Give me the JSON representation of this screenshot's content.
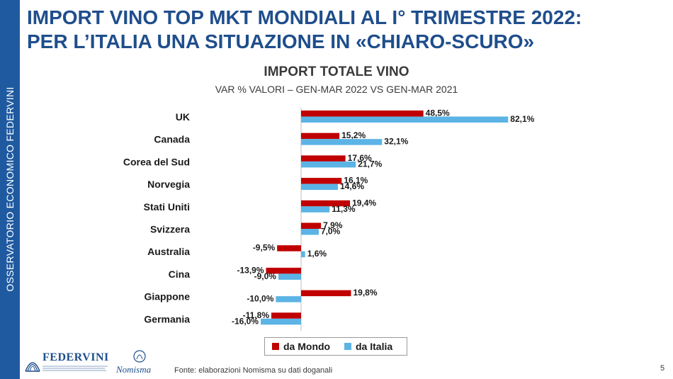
{
  "sidebar": {
    "text": "OSSERVATORIO ECONOMICO  FEDERVINI"
  },
  "header": {
    "title_line1": "IMPORT VINO TOP MKT MONDIALI AL I° TRIMESTRE 2022:",
    "title_line2": "PER L’ITALIA UNA SITUAZIONE IN «CHIARO-SCURO»"
  },
  "chart_data": {
    "type": "bar",
    "orientation": "horizontal",
    "title": "IMPORT TOTALE VINO",
    "subtitle": "VAR % VALORI – GEN-MAR 2022 VS GEN-MAR 2021",
    "categories": [
      "UK",
      "Canada",
      "Corea del Sud",
      "Norvegia",
      "Stati Uniti",
      "Svizzera",
      "Australia",
      "Cina",
      "Giappone",
      "Germania"
    ],
    "series": [
      {
        "name": "da Mondo",
        "color": "#c00000",
        "values": [
          48.5,
          15.2,
          17.6,
          16.1,
          19.4,
          7.9,
          -9.5,
          -13.9,
          19.8,
          -11.8
        ],
        "labels": [
          "48,5%",
          "15,2%",
          "17,6%",
          "16,1%",
          "19,4%",
          "7,9%",
          "-9,5%",
          "-13,9%",
          "19,8%",
          "-11,8%"
        ]
      },
      {
        "name": "da Italia",
        "color": "#5bb4e5",
        "values": [
          82.1,
          32.1,
          21.7,
          14.6,
          11.3,
          7.0,
          1.6,
          -9.0,
          -10.0,
          -16.0
        ],
        "labels": [
          "82,1%",
          "32,1%",
          "21,7%",
          "14,6%",
          "11,3%",
          "7,0%",
          "1,6%",
          "-9,0%",
          "-10,0%",
          "-16,0%"
        ]
      }
    ],
    "legend_position": "bottom",
    "grid": false
  },
  "legend": {
    "item1": "da Mondo",
    "item2": "da Italia"
  },
  "logos": {
    "federvini": "FEDERVINI",
    "nomisma": "Nomisma"
  },
  "footer": {
    "source": "Fonte: elaborazioni Nomisma su dati doganali",
    "page": "5"
  }
}
